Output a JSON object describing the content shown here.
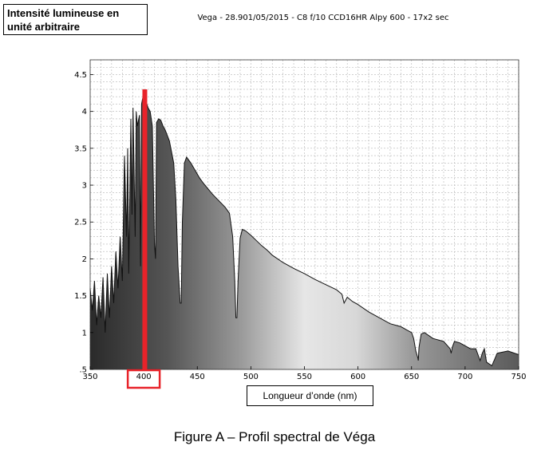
{
  "chart_data": {
    "type": "line",
    "title": "Vega - 28.901/05/2015 - C8 f/10 CCD16HR Alpy 600 - 17x2 sec",
    "ylabel": "Intensité lumineuse en unité arbitraire",
    "xlabel": "Longueur d’onde (nm)",
    "xlim": [
      350,
      750
    ],
    "ylim": [
      0.5,
      4.7
    ],
    "x_ticks": [
      "350",
      "400",
      "450",
      "500",
      "550",
      "600",
      "650",
      "700",
      "750"
    ],
    "y_ticks": [
      ".5",
      "1",
      "1.5",
      "2",
      "2.5",
      "3",
      "3.5",
      "4",
      "4.5"
    ],
    "grid": true,
    "highlight": {
      "x": 401,
      "y_top": 4.3,
      "tick_label": "400",
      "color": "#e8232a"
    },
    "series": [
      {
        "x": [
          350,
          352,
          354,
          356,
          358,
          360,
          362,
          364,
          366,
          368,
          370,
          372,
          374,
          376,
          378,
          380,
          382,
          384,
          385,
          386,
          388,
          389,
          390,
          392,
          393,
          394,
          396,
          397,
          398,
          400,
          402,
          404,
          406,
          408,
          410,
          411,
          412,
          414,
          416,
          418,
          420,
          424,
          428,
          430,
          432,
          434,
          435,
          436,
          438,
          440,
          444,
          448,
          452,
          456,
          460,
          464,
          468,
          472,
          476,
          480,
          483,
          485,
          486,
          487,
          488,
          490,
          492,
          495,
          500,
          505,
          510,
          515,
          520,
          530,
          540,
          550,
          560,
          570,
          580,
          585,
          587,
          590,
          595,
          600,
          610,
          620,
          630,
          640,
          650,
          652,
          654,
          656,
          656.3,
          657,
          659,
          662,
          670,
          680,
          686,
          687,
          688,
          690,
          695,
          700,
          705,
          710,
          712,
          714,
          716,
          718,
          720,
          725,
          730,
          740,
          750
        ],
        "y": [
          1.6,
          1.3,
          1.7,
          1.1,
          1.5,
          1.2,
          1.75,
          1.0,
          1.8,
          1.2,
          1.9,
          1.4,
          2.1,
          1.6,
          2.3,
          1.7,
          3.4,
          2.3,
          3.5,
          1.8,
          3.9,
          2.6,
          4.05,
          2.3,
          4.0,
          3.8,
          3.95,
          1.9,
          4.1,
          4.25,
          4.15,
          4.05,
          4.0,
          3.8,
          2.2,
          2.0,
          3.85,
          3.9,
          3.88,
          3.8,
          3.75,
          3.6,
          3.3,
          2.8,
          1.9,
          1.4,
          1.4,
          2.5,
          3.3,
          3.38,
          3.3,
          3.2,
          3.1,
          3.02,
          2.95,
          2.88,
          2.82,
          2.76,
          2.7,
          2.62,
          2.3,
          1.7,
          1.2,
          1.2,
          1.7,
          2.28,
          2.4,
          2.38,
          2.32,
          2.25,
          2.18,
          2.12,
          2.05,
          1.95,
          1.87,
          1.8,
          1.72,
          1.65,
          1.58,
          1.52,
          1.4,
          1.48,
          1.42,
          1.38,
          1.28,
          1.2,
          1.12,
          1.08,
          1.0,
          0.92,
          0.75,
          0.65,
          0.62,
          0.8,
          0.98,
          1.0,
          0.92,
          0.88,
          0.78,
          0.72,
          0.8,
          0.88,
          0.86,
          0.82,
          0.78,
          0.78,
          0.7,
          0.62,
          0.72,
          0.78,
          0.6,
          0.55,
          0.72,
          0.75,
          0.7
        ]
      }
    ]
  },
  "caption": "Figure A – Profil spectral de Véga"
}
